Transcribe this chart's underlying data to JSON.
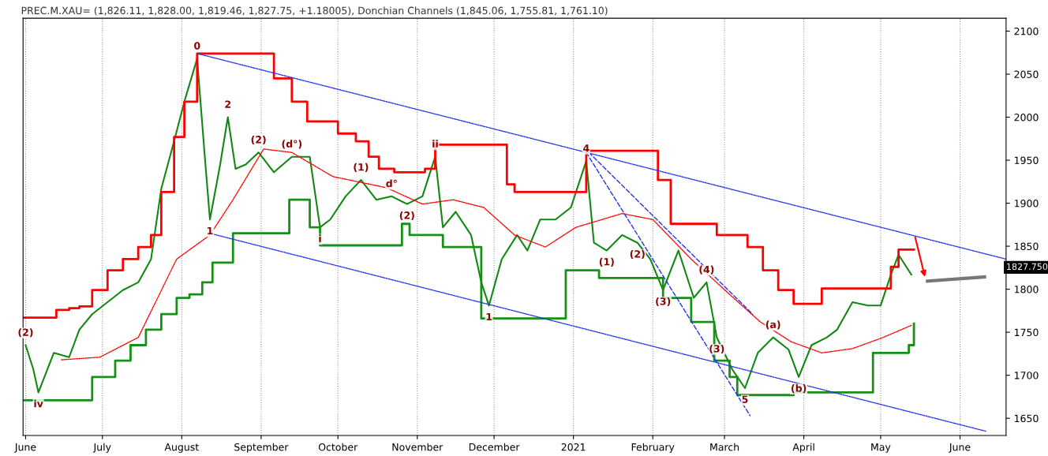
{
  "chart_data": {
    "type": "line",
    "title": "PREC.M.XAU= (1,826.11, 1,828.00, 1,819.46, 1,827.75, +1.18005), Donchian Channels (1,845.06, 1,755.81, 1,761.10)",
    "xlim": [
      "2020-05-31",
      "2021-06-19"
    ],
    "xticks": [
      {
        "value": "2020-06-01",
        "label": "June"
      },
      {
        "value": "2020-07-01",
        "label": "July"
      },
      {
        "value": "2020-08-01",
        "label": "August"
      },
      {
        "value": "2020-09-01",
        "label": "September"
      },
      {
        "value": "2020-10-01",
        "label": "October"
      },
      {
        "value": "2020-11-01",
        "label": "November"
      },
      {
        "value": "2020-12-01",
        "label": "December"
      },
      {
        "value": "2021-01-01",
        "label": "2021"
      },
      {
        "value": "2021-02-01",
        "label": "February"
      },
      {
        "value": "2021-03-01",
        "label": "March"
      },
      {
        "value": "2021-04-01",
        "label": "April"
      },
      {
        "value": "2021-05-01",
        "label": "May"
      },
      {
        "value": "2021-06-01",
        "label": "June"
      }
    ],
    "ylim": [
      1630,
      2115
    ],
    "yticks": [
      1650,
      1700,
      1750,
      1800,
      1850,
      1900,
      1950,
      2000,
      2050,
      2100
    ],
    "grid": "x",
    "series": [
      {
        "type": "line",
        "color": "#118811",
        "line_style": "solid",
        "x": [
          "2020-06-01",
          "2020-06-04",
          "2020-06-06",
          "2020-06-12",
          "2020-06-18",
          "2020-06-22",
          "2020-06-27",
          "2020-07-03",
          "2020-07-09",
          "2020-07-15",
          "2020-07-20",
          "2020-07-24",
          "2020-07-29",
          "2020-08-02",
          "2020-08-07",
          "2020-08-10",
          "2020-08-12",
          "2020-08-16",
          "2020-08-19",
          "2020-08-22",
          "2020-08-26",
          "2020-08-31",
          "2020-09-06",
          "2020-09-13",
          "2020-09-20",
          "2020-09-24",
          "2020-09-28",
          "2020-10-04",
          "2020-10-10",
          "2020-10-16",
          "2020-10-22",
          "2020-10-28",
          "2020-11-03",
          "2020-11-08",
          "2020-11-11",
          "2020-11-16",
          "2020-11-22",
          "2020-11-26",
          "2020-11-29",
          "2020-12-04",
          "2020-12-10",
          "2020-12-14",
          "2020-12-19",
          "2020-12-25",
          "2020-12-31",
          "2021-01-06",
          "2021-01-09",
          "2021-01-14",
          "2021-01-20",
          "2021-01-26",
          "2021-01-31",
          "2021-02-05",
          "2021-02-11",
          "2021-02-17",
          "2021-02-22",
          "2021-02-26",
          "2021-03-04",
          "2021-03-09",
          "2021-03-14",
          "2021-03-20",
          "2021-03-26",
          "2021-03-30",
          "2021-04-04",
          "2021-04-10",
          "2021-04-14",
          "2021-04-20",
          "2021-04-26",
          "2021-05-01",
          "2021-05-05",
          "2021-05-08",
          "2021-05-13"
        ],
        "values": [
          1735,
          1707,
          1680,
          1726,
          1721,
          1753,
          1771,
          1785,
          1799,
          1808,
          1835,
          1917,
          1972,
          2018,
          2068,
          1954,
          1881,
          1945,
          2000,
          1940,
          1945,
          1959,
          1936,
          1954,
          1954,
          1872,
          1881,
          1908,
          1927,
          1904,
          1908,
          1899,
          1908,
          1954,
          1872,
          1890,
          1863,
          1808,
          1781,
          1835,
          1863,
          1845,
          1881,
          1881,
          1895,
          1949,
          1854,
          1845,
          1863,
          1854,
          1835,
          1799,
          1845,
          1790,
          1808,
          1744,
          1707,
          1685,
          1726,
          1744,
          1730,
          1698,
          1735,
          1744,
          1753,
          1785,
          1781,
          1781,
          1817,
          1840,
          1817
        ]
      },
      {
        "type": "step",
        "color": "#ff0000",
        "line_style": "solid",
        "x": [
          "2020-05-31",
          "2020-06-13",
          "2020-06-18",
          "2020-06-22",
          "2020-06-27",
          "2020-07-03",
          "2020-07-09",
          "2020-07-15",
          "2020-07-20",
          "2020-07-24",
          "2020-07-29",
          "2020-08-02",
          "2020-08-07",
          "2020-09-06",
          "2020-09-08",
          "2020-09-13",
          "2020-09-19",
          "2020-10-01",
          "2020-10-08",
          "2020-10-13",
          "2020-10-17",
          "2020-10-23",
          "2020-11-04",
          "2020-11-08",
          "2020-12-06",
          "2020-12-09",
          "2020-12-15",
          "2021-01-03",
          "2021-01-06",
          "2021-02-03",
          "2021-02-08",
          "2021-02-10",
          "2021-02-26",
          "2021-03-01",
          "2021-03-10",
          "2021-03-16",
          "2021-03-22",
          "2021-03-28",
          "2021-04-06",
          "2021-04-08",
          "2021-04-28",
          "2021-05-05",
          "2021-05-08",
          "2021-05-14"
        ],
        "values": [
          1767,
          1776,
          1778,
          1780,
          1799,
          1822,
          1835,
          1849,
          1863,
          1913,
          1977,
          2018,
          2074,
          2045,
          2045,
          2018,
          1995,
          1981,
          1972,
          1954,
          1940,
          1936,
          1940,
          1968,
          1922,
          1913,
          1913,
          1913,
          1961,
          1927,
          1876,
          1876,
          1863,
          1863,
          1849,
          1822,
          1799,
          1783,
          1783,
          1801,
          1801,
          1826,
          1846,
          1846
        ]
      },
      {
        "type": "step",
        "color": "#169016",
        "line_style": "solid",
        "x": [
          "2020-05-31",
          "2020-06-27",
          "2020-07-06",
          "2020-07-12",
          "2020-07-18",
          "2020-07-24",
          "2020-07-30",
          "2020-08-04",
          "2020-08-09",
          "2020-08-13",
          "2020-08-21",
          "2020-09-12",
          "2020-09-20",
          "2020-09-24",
          "2020-10-26",
          "2020-10-29",
          "2020-11-11",
          "2020-11-26",
          "2020-12-29",
          "2021-01-08",
          "2021-01-11",
          "2021-02-05",
          "2021-02-16",
          "2021-02-25",
          "2021-03-03",
          "2021-03-06",
          "2021-03-28",
          "2021-04-28",
          "2021-05-12",
          "2021-05-14"
        ],
        "values": [
          1671,
          1698,
          1717,
          1735,
          1753,
          1771,
          1790,
          1794,
          1808,
          1831,
          1865,
          1904,
          1872,
          1851,
          1876,
          1863,
          1849,
          1766,
          1822,
          1822,
          1813,
          1790,
          1762,
          1717,
          1698,
          1677,
          1680,
          1726,
          1735,
          1760
        ]
      },
      {
        "type": "line",
        "color": "#ff0000",
        "line_style": "dotted",
        "x": [
          "2020-06-15",
          "2020-06-30",
          "2020-07-15",
          "2020-07-30",
          "2020-08-12",
          "2020-08-21",
          "2020-09-02",
          "2020-09-13",
          "2020-09-29",
          "2020-10-20",
          "2020-11-03",
          "2020-11-15",
          "2020-11-27",
          "2020-12-09",
          "2020-12-21",
          "2021-01-02",
          "2021-01-20",
          "2021-02-01",
          "2021-02-16",
          "2021-03-03",
          "2021-03-15",
          "2021-03-27",
          "2021-04-08",
          "2021-04-20",
          "2021-05-02",
          "2021-05-13"
        ],
        "values": [
          1718,
          1721,
          1744,
          1835,
          1863,
          1904,
          1963,
          1959,
          1931,
          1918,
          1899,
          1904,
          1895,
          1863,
          1849,
          1872,
          1888,
          1881,
          1835,
          1794,
          1762,
          1739,
          1726,
          1731,
          1744,
          1758
        ]
      },
      {
        "type": "line",
        "color": "#2233ee",
        "line_style": "dotted",
        "x": [
          "2020-08-07",
          "2021-06-19"
        ],
        "values": [
          2074,
          1835
        ]
      },
      {
        "type": "line",
        "color": "#2233ee",
        "line_style": "dotted",
        "x": [
          "2020-08-12",
          "2021-06-11"
        ],
        "values": [
          1865,
          1635
        ]
      },
      {
        "type": "line",
        "color": "#2233ee",
        "line_style": "dashed",
        "x": [
          "2021-01-06",
          "2021-03-11"
        ],
        "values": [
          1959,
          1653
        ]
      },
      {
        "type": "line",
        "color": "#2233ee",
        "line_style": "dashed",
        "x": [
          "2021-01-07",
          "2021-03-12"
        ],
        "values": [
          1959,
          1771
        ]
      }
    ],
    "annotations": [
      "1827.750",
      {
        "text": "0",
        "x": "2020-08-07",
        "y": 2068
      },
      {
        "text": "1",
        "x": "2020-08-12",
        "y": 1881
      },
      {
        "text": "2",
        "x": "2020-08-19",
        "y": 2000
      },
      {
        "text": "(2)",
        "x": "2020-08-31",
        "y": 1959
      },
      {
        "text": "(d°)",
        "x": "2020-09-13",
        "y": 1954
      },
      {
        "text": "i",
        "x": "2020-09-24",
        "y": 1872
      },
      {
        "text": "(1)",
        "x": "2020-10-10",
        "y": 1927
      },
      {
        "text": "d°",
        "x": "2020-10-22",
        "y": 1908
      },
      {
        "text": "(2)",
        "x": "2020-10-28",
        "y": 1899
      },
      {
        "text": "ii",
        "x": "2020-11-08",
        "y": 1954
      },
      {
        "text": "1",
        "x": "2020-11-29",
        "y": 1781
      },
      {
        "text": "4",
        "x": "2021-01-06",
        "y": 1949
      },
      {
        "text": "(1)",
        "x": "2021-01-14",
        "y": 1845
      },
      {
        "text": "(2)",
        "x": "2021-01-26",
        "y": 1854
      },
      {
        "text": "(3)",
        "x": "2021-02-05",
        "y": 1799
      },
      {
        "text": "(3)",
        "x": "2021-02-26",
        "y": 1744
      },
      {
        "text": "(4)",
        "x": "2021-02-22",
        "y": 1808
      },
      {
        "text": "5",
        "x": "2021-03-09",
        "y": 1685
      },
      {
        "text": "(a)",
        "x": "2021-03-20",
        "y": 1744
      },
      {
        "text": "(b)",
        "x": "2021-03-30",
        "y": 1698
      },
      {
        "text": "(2)",
        "x": "2020-06-01",
        "y": 1735
      },
      {
        "text": "iv",
        "x": "2020-06-06",
        "y": 1680
      }
    ]
  }
}
